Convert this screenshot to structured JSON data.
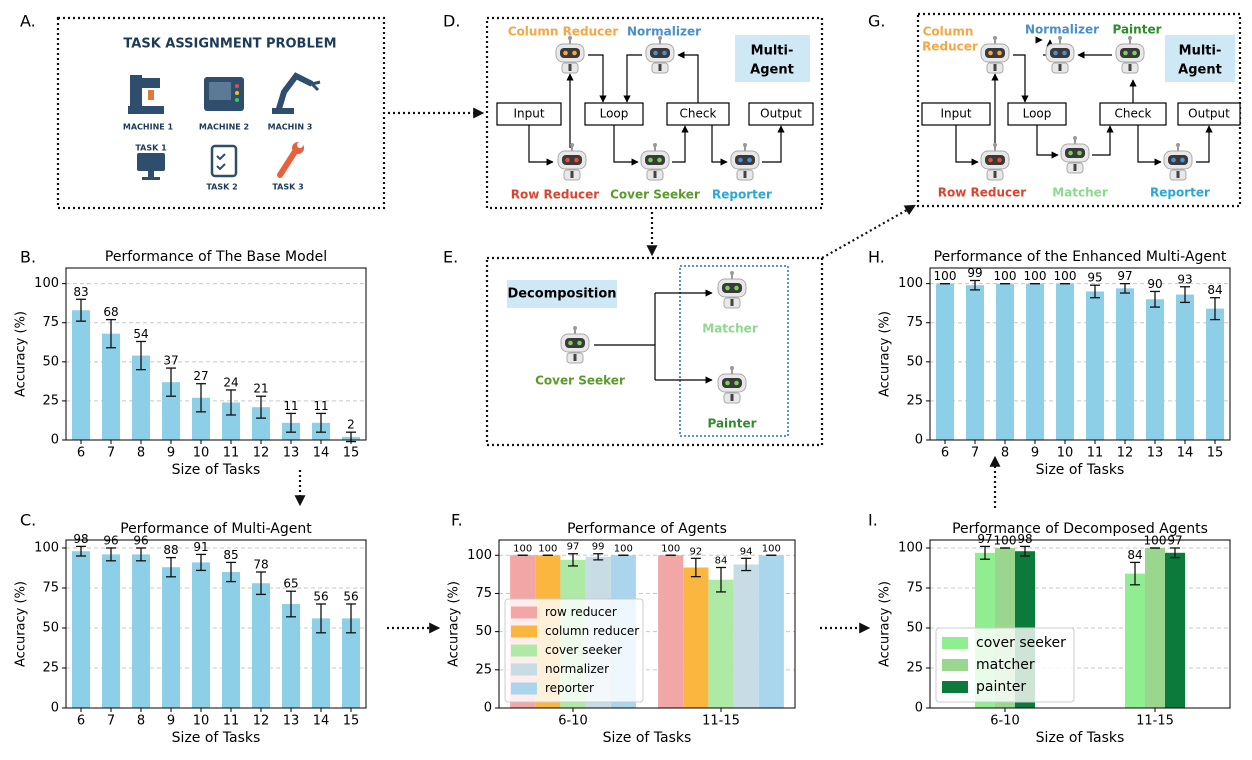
{
  "panel_labels": [
    "A.",
    "B.",
    "C.",
    "D.",
    "E.",
    "F.",
    "G.",
    "H.",
    "I."
  ],
  "panel_a": {
    "title": "TASK ASSIGNMENT PROBLEM",
    "machines": [
      "MACHINE 1",
      "MACHINE 2",
      "MACHIN 3"
    ],
    "tasks": [
      "TASK 1",
      "TASK 2",
      "TASK 3"
    ]
  },
  "panel_d": {
    "badge": [
      "Multi-",
      "Agent"
    ],
    "boxes": [
      "Input",
      "Loop",
      "Check",
      "Output"
    ],
    "agents": [
      "Column Reducer",
      "Normalizer",
      "Row Reducer",
      "Cover Seeker",
      "Reporter"
    ]
  },
  "panel_e": {
    "badge": "Decomposition",
    "source": "Cover Seeker",
    "targets": [
      "Matcher",
      "Painter"
    ]
  },
  "panel_g": {
    "badge": [
      "Multi-",
      "Agent"
    ],
    "boxes": [
      "Input",
      "Loop",
      "Check",
      "Output"
    ],
    "agents": [
      [
        "Column",
        "Reducer"
      ],
      "Normalizer",
      "Painter",
      "Row Reducer",
      "Matcher",
      "Reporter"
    ]
  },
  "chart_data": [
    {
      "type": "bar",
      "title": "Performance of The Base Model",
      "x_label": "Size of Tasks",
      "y_label": "Accuracy (%)",
      "categories": [
        "6",
        "7",
        "8",
        "9",
        "10",
        "11",
        "12",
        "13",
        "14",
        "15"
      ],
      "values": [
        83,
        68,
        54,
        37,
        27,
        24,
        21,
        11,
        11,
        2
      ],
      "errors": [
        7,
        9,
        9,
        9,
        9,
        8,
        7,
        6,
        6,
        3
      ],
      "color": "#8ecfe8",
      "ylim": [
        0,
        110
      ],
      "yticks": [
        0,
        25,
        50,
        75,
        100
      ],
      "grid": true
    },
    {
      "type": "bar",
      "title": "Performance of Multi-Agent",
      "x_label": "Size of Tasks",
      "y_label": "Accuracy (%)",
      "categories": [
        "6",
        "7",
        "8",
        "9",
        "10",
        "11",
        "12",
        "13",
        "14",
        "15"
      ],
      "values": [
        98,
        96,
        96,
        88,
        91,
        85,
        78,
        65,
        56,
        56
      ],
      "errors": [
        3,
        4,
        4,
        6,
        5,
        6,
        7,
        8,
        9,
        9
      ],
      "color": "#8ecfe8",
      "ylim": [
        0,
        105
      ],
      "yticks": [
        0,
        25,
        50,
        75,
        100
      ],
      "grid": true
    },
    {
      "type": "grouped_bar",
      "title": "Performance of Agents",
      "x_label": "Size of Tasks",
      "y_label": "Accuracy (%)",
      "categories": [
        "6-10",
        "11-15"
      ],
      "series": [
        {
          "name": "row reducer",
          "color": "#f2a6a6",
          "values": [
            100,
            100
          ],
          "errors": [
            0,
            0
          ]
        },
        {
          "name": "column reducer",
          "color": "#fbb640",
          "values": [
            100,
            92
          ],
          "errors": [
            0,
            6
          ]
        },
        {
          "name": "cover seeker",
          "color": "#aeeaa6",
          "values": [
            97,
            84
          ],
          "errors": [
            4,
            8
          ]
        },
        {
          "name": "normalizer",
          "color": "#c8dce6",
          "values": [
            99,
            94
          ],
          "errors": [
            2,
            4
          ]
        },
        {
          "name": "reporter",
          "color": "#a9d6ec",
          "values": [
            100,
            100
          ],
          "errors": [
            0,
            0
          ]
        }
      ],
      "legend": "lower left",
      "ylim": [
        0,
        110
      ],
      "yticks": [
        0,
        25,
        50,
        75,
        100
      ],
      "grid": true
    },
    {
      "type": "bar",
      "title": "Performance of the Enhanced Multi-Agent",
      "x_label": "Size of Tasks",
      "y_label": "Accuracy (%)",
      "categories": [
        "6",
        "7",
        "8",
        "9",
        "10",
        "11",
        "12",
        "13",
        "14",
        "15"
      ],
      "values": [
        100,
        99,
        100,
        100,
        100,
        95,
        97,
        90,
        93,
        84
      ],
      "errors": [
        0,
        3,
        0,
        0,
        0,
        4,
        3,
        5,
        5,
        7
      ],
      "color": "#8ecfe8",
      "ylim": [
        0,
        110
      ],
      "yticks": [
        0,
        25,
        50,
        75,
        100
      ],
      "grid": true
    },
    {
      "type": "grouped_bar",
      "title": "Performance of Decomposed Agents",
      "x_label": "Size of Tasks",
      "y_label": "Accuracy (%)",
      "categories": [
        "6-10",
        "11-15"
      ],
      "series": [
        {
          "name": "cover seeker",
          "color": "#90ee90",
          "values": [
            97,
            84
          ],
          "errors": [
            4,
            7
          ]
        },
        {
          "name": "matcher",
          "color": "#9ad68e",
          "values": [
            100,
            100
          ],
          "errors": [
            0,
            0
          ]
        },
        {
          "name": "painter",
          "color": "#0b7a3a",
          "values": [
            98,
            97
          ],
          "errors": [
            3,
            3
          ]
        }
      ],
      "legend": "lower left",
      "ylim": [
        0,
        105
      ],
      "yticks": [
        0,
        25,
        50,
        75,
        100
      ],
      "grid": true
    }
  ]
}
